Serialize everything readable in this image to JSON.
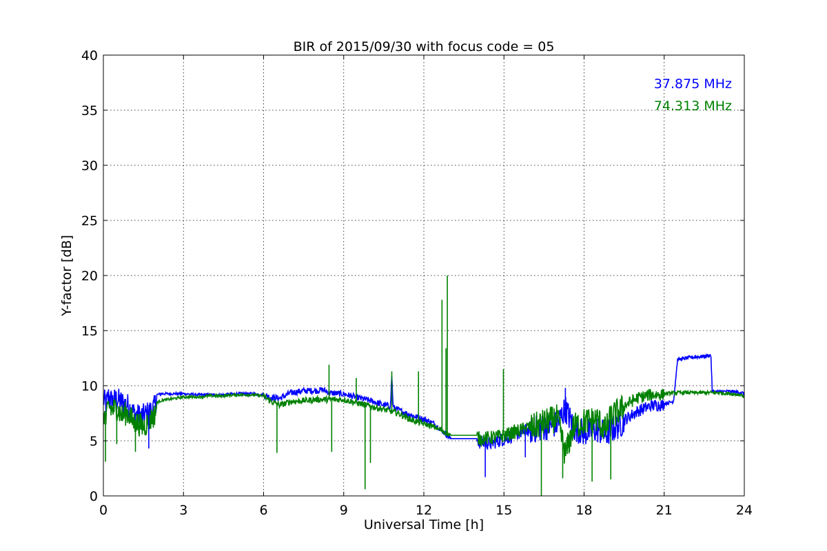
{
  "chart_data": {
    "type": "line",
    "title": "BIR of 2015/09/30 with focus code = 05",
    "xlabel": "Universal Time [h]",
    "ylabel": "Y-factor [dB]",
    "xlim": [
      0,
      24
    ],
    "ylim": [
      0,
      40
    ],
    "xticks": [
      0,
      3,
      6,
      9,
      12,
      15,
      18,
      21,
      24
    ],
    "yticks": [
      0,
      5,
      10,
      15,
      20,
      25,
      30,
      35,
      40
    ],
    "xtick_labels": [
      "0",
      "3",
      "6",
      "9",
      "12",
      "15",
      "18",
      "21",
      "24"
    ],
    "ytick_labels": [
      "0",
      "5",
      "10",
      "15",
      "20",
      "25",
      "30",
      "35",
      "40"
    ],
    "grid": true,
    "legend_placement": "top-right",
    "series": [
      {
        "name": "37.875 MHz",
        "color": "#0000ff",
        "x": [
          0,
          0.1,
          0.2,
          0.3,
          0.5,
          0.7,
          0.9,
          1.1,
          1.3,
          1.5,
          1.7,
          1.9,
          2.0,
          2.2,
          2.5,
          3.0,
          3.5,
          4.0,
          4.5,
          5.0,
          5.5,
          6.0,
          6.3,
          6.6,
          7.0,
          7.5,
          8.0,
          8.2,
          8.5,
          9.0,
          9.5,
          10.0,
          10.5,
          10.75,
          10.8,
          10.85,
          11.0,
          11.5,
          12.0,
          12.4,
          12.8,
          13.0,
          14.0,
          14.1,
          14.5,
          15.0,
          15.5,
          16.0,
          16.5,
          17.0,
          17.3,
          17.6,
          18.0,
          18.5,
          18.8,
          19.0,
          19.5,
          20.0,
          20.5,
          21.0,
          21.35,
          21.5,
          22.0,
          22.5,
          22.75,
          22.8,
          23.0,
          23.5,
          23.9,
          24.0
        ],
        "y": [
          9.0,
          8.5,
          9.3,
          8.8,
          9.0,
          8.7,
          8.5,
          7.8,
          7.5,
          7.5,
          7.8,
          8.2,
          9.2,
          9.3,
          9.3,
          9.3,
          9.2,
          9.2,
          9.2,
          9.3,
          9.3,
          9.2,
          9.0,
          8.9,
          9.4,
          9.6,
          9.6,
          9.7,
          9.4,
          9.3,
          9.0,
          8.7,
          8.3,
          8.2,
          11.0,
          8.1,
          7.9,
          7.4,
          7.0,
          6.6,
          5.7,
          5.2,
          5.2,
          5.0,
          4.9,
          5.3,
          5.8,
          6.2,
          6.5,
          6.8,
          8.2,
          6.5,
          6.0,
          6.3,
          5.8,
          6.2,
          7.0,
          7.8,
          8.3,
          8.4,
          8.6,
          12.4,
          12.6,
          12.7,
          12.8,
          9.5,
          9.5,
          9.5,
          9.4,
          9.3
        ]
      },
      {
        "name": "74.313 MHz",
        "color": "#008000",
        "x": [
          0,
          0.1,
          0.2,
          0.3,
          0.5,
          0.7,
          0.9,
          1.1,
          1.3,
          1.5,
          1.7,
          1.9,
          2.0,
          2.2,
          2.5,
          3.0,
          3.5,
          4.0,
          4.5,
          5.0,
          5.5,
          6.0,
          6.3,
          6.6,
          7.0,
          7.5,
          8.0,
          8.5,
          9.0,
          9.5,
          10.0,
          10.5,
          11.0,
          11.5,
          12.0,
          12.4,
          12.8,
          13.0,
          14.0,
          14.1,
          14.5,
          15.0,
          15.5,
          16.0,
          16.5,
          17.0,
          17.3,
          17.6,
          18.0,
          18.5,
          18.8,
          19.0,
          19.5,
          20.0,
          20.5,
          21.0,
          21.5,
          22.0,
          22.5,
          22.75,
          22.8,
          23.0,
          23.5,
          23.9,
          24.0
        ],
        "y": [
          8.0,
          7.0,
          8.5,
          8.0,
          8.2,
          7.5,
          7.8,
          7.0,
          6.8,
          6.5,
          7.0,
          7.5,
          8.5,
          8.7,
          8.8,
          9.0,
          9.0,
          9.1,
          9.1,
          9.2,
          9.2,
          9.1,
          8.6,
          8.3,
          8.6,
          8.7,
          8.8,
          8.8,
          8.8,
          8.5,
          8.2,
          7.9,
          7.6,
          7.0,
          6.6,
          6.3,
          5.8,
          5.5,
          5.5,
          5.3,
          5.4,
          5.6,
          6.0,
          6.4,
          6.9,
          7.3,
          4.0,
          6.5,
          7.0,
          7.2,
          6.2,
          7.4,
          8.3,
          9.0,
          9.3,
          9.3,
          9.4,
          9.4,
          9.4,
          9.4,
          9.4,
          9.4,
          9.3,
          9.2,
          9.0
        ]
      }
    ],
    "spikes": [
      {
        "series": 1,
        "x": 8.45,
        "y": 11.9
      },
      {
        "series": 1,
        "x": 8.55,
        "y": 4.0
      },
      {
        "series": 1,
        "x": 9.47,
        "y": 10.7
      },
      {
        "series": 1,
        "x": 9.8,
        "y": 0.6
      },
      {
        "series": 1,
        "x": 10.0,
        "y": 3.0
      },
      {
        "series": 1,
        "x": 10.8,
        "y": 11.3
      },
      {
        "series": 1,
        "x": 11.8,
        "y": 11.3
      },
      {
        "series": 1,
        "x": 12.68,
        "y": 17.8
      },
      {
        "series": 1,
        "x": 12.83,
        "y": 13.4
      },
      {
        "series": 1,
        "x": 12.88,
        "y": 20.0
      },
      {
        "series": 1,
        "x": 14.98,
        "y": 11.5
      },
      {
        "series": 1,
        "x": 16.4,
        "y": 0.0
      },
      {
        "series": 1,
        "x": 17.2,
        "y": 1.6
      },
      {
        "series": 1,
        "x": 18.3,
        "y": 1.3
      },
      {
        "series": 1,
        "x": 19.0,
        "y": 1.5
      },
      {
        "series": 1,
        "x": 0.08,
        "y": 3.1
      },
      {
        "series": 1,
        "x": 0.5,
        "y": 4.7
      },
      {
        "series": 1,
        "x": 1.2,
        "y": 4.0
      },
      {
        "series": 1,
        "x": 6.5,
        "y": 3.9
      },
      {
        "series": 0,
        "x": 1.7,
        "y": 4.3
      },
      {
        "series": 0,
        "x": 14.3,
        "y": 1.7
      },
      {
        "series": 0,
        "x": 15.8,
        "y": 3.5
      },
      {
        "series": 0,
        "x": 17.3,
        "y": 9.8
      }
    ]
  }
}
